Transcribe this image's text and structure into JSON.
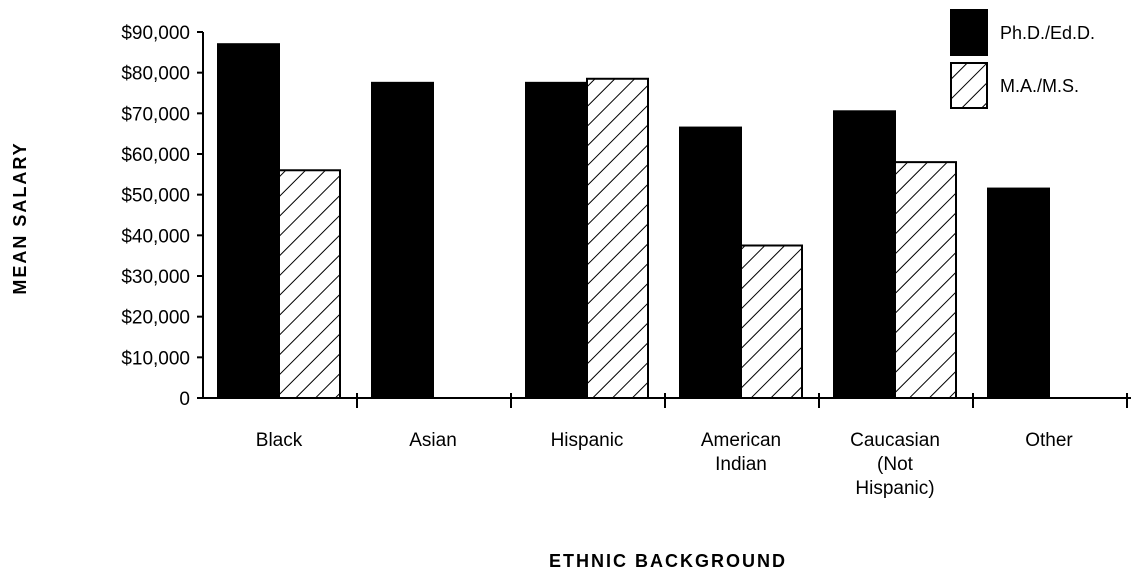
{
  "chart_data": {
    "type": "bar",
    "categories": [
      [
        "Black"
      ],
      [
        "Asian"
      ],
      [
        "Hispanic"
      ],
      [
        "American",
        "Indian"
      ],
      [
        "Caucasian",
        "(Not",
        "Hispanic)"
      ],
      [
        "Other"
      ]
    ],
    "series": [
      {
        "name": "Ph.D./Ed.D.",
        "values": [
          87000,
          77500,
          77500,
          66500,
          70500,
          51500
        ],
        "style": "solid"
      },
      {
        "name": "M.A./M.S.",
        "values": [
          56000,
          null,
          78500,
          37500,
          58000,
          null
        ],
        "style": "hatched"
      }
    ],
    "y_ticks": [
      "0",
      "$10,000",
      "$20,000",
      "$30,000",
      "$40,000",
      "$50,000",
      "$60,000",
      "$70,000",
      "$80,000",
      "$90,000"
    ],
    "ylim": [
      0,
      90000
    ],
    "xlabel": "ETHNIC  BACKGROUND",
    "ylabel": "MEAN  SALARY",
    "legend_position": "top-right",
    "grid": false,
    "colors": {
      "solid": "#000000",
      "hatch": "#000000",
      "background": "#ffffff"
    }
  }
}
